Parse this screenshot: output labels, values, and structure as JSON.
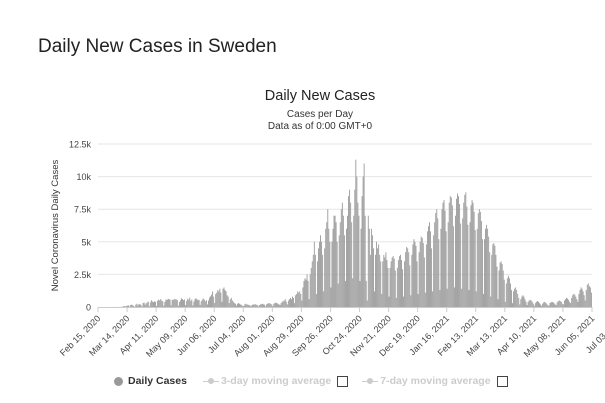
{
  "page": {
    "title": "Daily New Cases in Sweden"
  },
  "chart_data": {
    "type": "bar",
    "title": "Daily New Cases",
    "subtitle_lines": [
      "Cases per Day",
      "Data as of 0:00 GMT+0"
    ],
    "ylabel": "Novel Coronavirus Daily Cases",
    "xlabel": "",
    "ylim": [
      0,
      12500
    ],
    "y_ticks": [
      0,
      2500,
      5000,
      7500,
      10000,
      12500
    ],
    "y_tick_labels": [
      "0",
      "2.5k",
      "5k",
      "7.5k",
      "10k",
      "12.5k"
    ],
    "x_tick_labels": [
      "Feb 15, 2020",
      "Mar 14, 2020",
      "Apr 11, 2020",
      "May 09, 2020",
      "Jun 06, 2020",
      "Jul 04, 2020",
      "Aug 01, 2020",
      "Aug 29, 2020",
      "Sep 26, 2020",
      "Oct 24, 2020",
      "Nov 21, 2020",
      "Dec 19, 2020",
      "Jan 16, 2021",
      "Feb 13, 2021",
      "Mar 13, 2021",
      "Apr 10, 2021",
      "May 08, 2021",
      "Jun 05, 2021",
      "Jul 03, 2021",
      "Jul 31, 2021"
    ],
    "grid": true,
    "legend_position": "bottom",
    "bar_color": "#999999",
    "series": [
      {
        "name": "Daily Cases",
        "unit": "week",
        "note": "weekly groups of daily values, each group starting on the matching x tick week",
        "weeks": [
          [
            0,
            0,
            0,
            0,
            0,
            0,
            0
          ],
          [
            0,
            0,
            0,
            1,
            0,
            1,
            0
          ],
          [
            0,
            1,
            2,
            0,
            2,
            4,
            6
          ],
          [
            0,
            10,
            20,
            60,
            70,
            40,
            80
          ],
          [
            100,
            120,
            30,
            150,
            180,
            140,
            90
          ],
          [
            20,
            180,
            250,
            120,
            220,
            210,
            160
          ],
          [
            30,
            300,
            350,
            180,
            290,
            350,
            410
          ],
          [
            60,
            360,
            520,
            420,
            370,
            430,
            400
          ],
          [
            80,
            480,
            560,
            510,
            610,
            490,
            440
          ],
          [
            100,
            390,
            580,
            530,
            620,
            620,
            560
          ],
          [
            120,
            560,
            540,
            620,
            590,
            580,
            530
          ],
          [
            100,
            380,
            510,
            660,
            610,
            530,
            580
          ],
          [
            150,
            460,
            640,
            560,
            720,
            480,
            570
          ],
          [
            120,
            420,
            600,
            670,
            600,
            520,
            550
          ],
          [
            160,
            440,
            560,
            660,
            570,
            430,
            520
          ],
          [
            200,
            500,
            720,
            820,
            950,
            1200,
            800
          ],
          [
            300,
            1000,
            1100,
            1300,
            1200,
            1400,
            1100
          ],
          [
            400,
            1400,
            1500,
            1300,
            1200,
            900,
            800
          ],
          [
            300,
            600,
            700,
            500,
            400,
            300,
            250
          ],
          [
            100,
            250,
            300,
            250,
            200,
            150,
            100
          ],
          [
            80,
            200,
            250,
            200,
            180,
            150,
            120
          ],
          [
            60,
            150,
            200,
            180,
            220,
            180,
            150
          ],
          [
            50,
            150,
            200,
            220,
            250,
            200,
            180
          ],
          [
            40,
            200,
            250,
            300,
            280,
            250,
            200
          ],
          [
            80,
            250,
            300,
            350,
            300,
            250,
            200
          ],
          [
            150,
            300,
            400,
            450,
            500,
            600,
            400
          ],
          [
            200,
            500,
            600,
            700,
            600,
            800,
            700
          ],
          [
            300,
            900,
            1000,
            1200,
            1100,
            1200,
            1000
          ],
          [
            500,
            1500,
            2000,
            2200,
            2100,
            2500,
            2000
          ],
          [
            600,
            2500,
            3000,
            3500,
            4000,
            5000,
            4000
          ],
          [
            1000,
            3500,
            4500,
            5000,
            5500,
            5000,
            4000
          ],
          [
            1200,
            4500,
            6000,
            6500,
            7500,
            6000,
            5000
          ],
          [
            1500,
            5000,
            6000,
            7000,
            7000,
            6500,
            5000
          ],
          [
            1800,
            5500,
            6500,
            7500,
            8000,
            7000,
            5500
          ],
          [
            2000,
            6000,
            7000,
            8500,
            9000,
            8000,
            6500
          ],
          [
            2200,
            7000,
            9000,
            11300,
            10000,
            8000,
            7000
          ],
          [
            2000,
            6000,
            8500,
            10000,
            11000,
            7000,
            2000
          ],
          [
            500,
            7000,
            6000,
            4000,
            6000,
            5500,
            4500
          ],
          [
            1200,
            4000,
            5000,
            4500,
            4800,
            4000,
            3500
          ],
          [
            1000,
            3500,
            4000,
            3800,
            4200,
            3600,
            3000
          ],
          [
            800,
            3000,
            3500,
            3800,
            3900,
            3700,
            2800
          ],
          [
            700,
            3000,
            3600,
            3900,
            4000,
            3600,
            2900
          ],
          [
            800,
            3500,
            4200,
            4600,
            4500,
            4200,
            3200
          ],
          [
            900,
            4000,
            4800,
            5200,
            5000,
            4700,
            3500
          ],
          [
            1000,
            4200,
            5000,
            5400,
            5300,
            4900,
            3800
          ],
          [
            1100,
            4800,
            5800,
            6200,
            6500,
            5800,
            4500
          ],
          [
            1200,
            5500,
            6500,
            7200,
            7500,
            6800,
            5200
          ],
          [
            1300,
            6000,
            7500,
            8000,
            8200,
            7400,
            5800
          ],
          [
            1400,
            6500,
            8000,
            8500,
            8400,
            7800,
            6200
          ],
          [
            1500,
            7000,
            8300,
            8700,
            8500,
            7900,
            6400
          ],
          [
            1400,
            6800,
            8000,
            8600,
            8800,
            7700,
            6300
          ],
          [
            1300,
            6500,
            7800,
            8200,
            8000,
            7300,
            5900
          ],
          [
            1200,
            6000,
            7200,
            7500,
            7300,
            6600,
            5200
          ],
          [
            1000,
            5200,
            6000,
            6300,
            6000,
            5400,
            4200
          ],
          [
            800,
            4000,
            4800,
            4900,
            4700,
            4000,
            3100
          ],
          [
            600,
            2800,
            3400,
            3500,
            3300,
            2800,
            2100
          ],
          [
            400,
            1800,
            2200,
            2400,
            2200,
            1800,
            1300
          ],
          [
            300,
            1200,
            1400,
            1500,
            1300,
            1000,
            700
          ],
          [
            200,
            600,
            800,
            900,
            800,
            600,
            400
          ],
          [
            150,
            400,
            500,
            550,
            500,
            400,
            250
          ],
          [
            100,
            300,
            400,
            450,
            400,
            300,
            200
          ],
          [
            100,
            250,
            350,
            380,
            350,
            250,
            150
          ],
          [
            100,
            300,
            350,
            400,
            380,
            300,
            200
          ],
          [
            150,
            350,
            450,
            500,
            450,
            400,
            250
          ],
          [
            200,
            500,
            600,
            700,
            650,
            550,
            400
          ],
          [
            300,
            700,
            900,
            1000,
            950,
            800,
            600
          ],
          [
            400,
            1000,
            1300,
            1500,
            1400,
            1200,
            900
          ],
          [
            500,
            1300,
            1700,
            1800,
            1600,
            1500,
            1100
          ]
        ]
      },
      {
        "name": "3-day moving average",
        "enabled": false
      },
      {
        "name": "7-day moving average",
        "enabled": false
      }
    ]
  },
  "legend": {
    "items": [
      {
        "label": "Daily Cases",
        "active": true
      },
      {
        "label": "3-day moving average",
        "active": false
      },
      {
        "label": "7-day moving average",
        "active": false
      }
    ]
  }
}
